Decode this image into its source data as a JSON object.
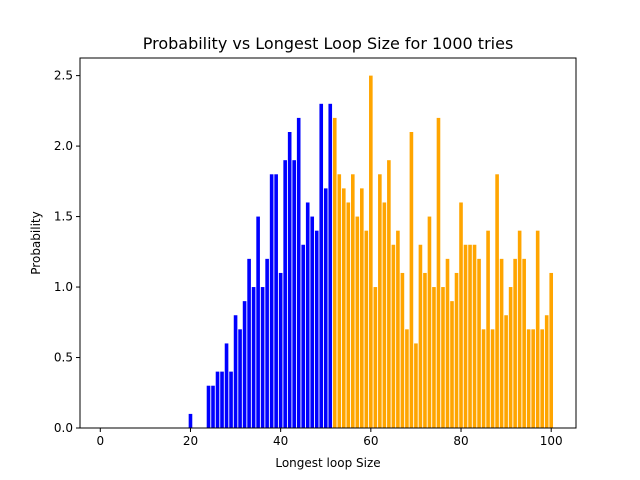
{
  "chart_data": {
    "type": "bar",
    "title": "Probability vs Longest Loop Size for 1000 tries",
    "xlabel": "Longest loop Size",
    "ylabel": "Probability",
    "xlim": [
      -4.5,
      105.5
    ],
    "ylim": [
      0,
      2.625
    ],
    "xticks": [
      0,
      20,
      40,
      60,
      80,
      100
    ],
    "yticks": [
      0.0,
      0.5,
      1.0,
      1.5,
      2.0,
      2.5
    ],
    "ytick_labels": [
      "0.0",
      "0.5",
      "1.0",
      "1.5",
      "2.0",
      "2.5"
    ],
    "grid": false,
    "series_colors": {
      "blue": "#0000ff",
      "orange": "#ffa500"
    },
    "x": [
      20,
      24,
      25,
      26,
      27,
      28,
      29,
      30,
      31,
      32,
      33,
      34,
      35,
      36,
      37,
      38,
      39,
      40,
      41,
      42,
      43,
      44,
      45,
      46,
      47,
      48,
      49,
      50,
      51,
      52,
      53,
      54,
      55,
      56,
      57,
      58,
      59,
      60,
      61,
      62,
      63,
      64,
      65,
      66,
      67,
      68,
      69,
      70,
      71,
      72,
      73,
      74,
      75,
      76,
      77,
      78,
      79,
      80,
      81,
      82,
      83,
      84,
      85,
      86,
      87,
      88,
      89,
      90,
      91,
      92,
      93,
      94,
      95,
      96,
      97,
      98,
      99,
      100
    ],
    "values": [
      0.1,
      0.3,
      0.3,
      0.4,
      0.4,
      0.6,
      0.4,
      0.8,
      0.7,
      0.9,
      1.2,
      1.0,
      1.5,
      1.0,
      1.2,
      1.8,
      1.8,
      1.1,
      1.9,
      2.1,
      1.9,
      2.2,
      1.3,
      1.6,
      1.5,
      1.4,
      2.3,
      1.7,
      2.3,
      2.2,
      1.8,
      1.7,
      1.6,
      1.8,
      1.5,
      1.7,
      1.4,
      2.5,
      1.0,
      1.8,
      1.6,
      1.9,
      1.3,
      1.4,
      1.1,
      0.7,
      2.1,
      0.6,
      1.3,
      1.1,
      1.5,
      1.0,
      2.2,
      1.0,
      1.2,
      0.9,
      1.1,
      1.6,
      1.3,
      1.3,
      1.3,
      1.2,
      0.7,
      1.4,
      0.7,
      1.8,
      1.2,
      0.8,
      1.0,
      1.2,
      1.4,
      1.2,
      0.7,
      0.7,
      1.4,
      0.7,
      0.8,
      1.1
    ],
    "colors": [
      "blue",
      "blue",
      "blue",
      "blue",
      "blue",
      "blue",
      "blue",
      "blue",
      "blue",
      "blue",
      "blue",
      "blue",
      "blue",
      "blue",
      "blue",
      "blue",
      "blue",
      "blue",
      "blue",
      "blue",
      "blue",
      "blue",
      "blue",
      "blue",
      "blue",
      "blue",
      "blue",
      "blue",
      "blue",
      "orange",
      "orange",
      "orange",
      "orange",
      "orange",
      "orange",
      "orange",
      "orange",
      "orange",
      "orange",
      "orange",
      "orange",
      "orange",
      "orange",
      "orange",
      "orange",
      "orange",
      "orange",
      "orange",
      "orange",
      "orange",
      "orange",
      "orange",
      "orange",
      "orange",
      "orange",
      "orange",
      "orange",
      "orange",
      "orange",
      "orange",
      "orange",
      "orange",
      "orange",
      "orange",
      "orange",
      "orange",
      "orange",
      "orange",
      "orange",
      "orange",
      "orange",
      "orange",
      "orange",
      "orange",
      "orange",
      "orange",
      "orange",
      "orange"
    ]
  }
}
